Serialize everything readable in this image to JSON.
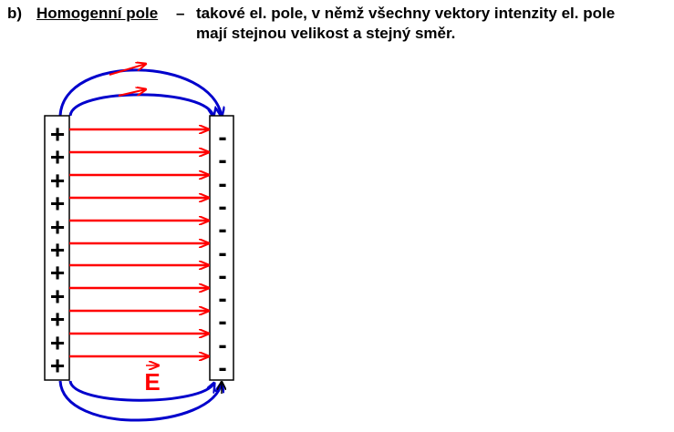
{
  "heading": {
    "item_label": "b)",
    "term": "Homogenní pole",
    "dash": "–",
    "definition_line1": "takové el. pole, v němž všechny vektory intenzity el. pole",
    "definition_line2": "mají stejnou velikost a stejný směr."
  },
  "diagram": {
    "positive_plate_sign": "+",
    "negative_plate_sign": "-",
    "charge_count_positive": 11,
    "charge_count_negative": 11,
    "field_line_count": 11,
    "field_symbol": "E",
    "colors": {
      "field_line": "#ff0000",
      "fringe_line": "#0000cc",
      "field_symbol": "#ff0000",
      "plate_outline": "#000000"
    },
    "icons": [
      "vector-arrow-icon"
    ]
  }
}
